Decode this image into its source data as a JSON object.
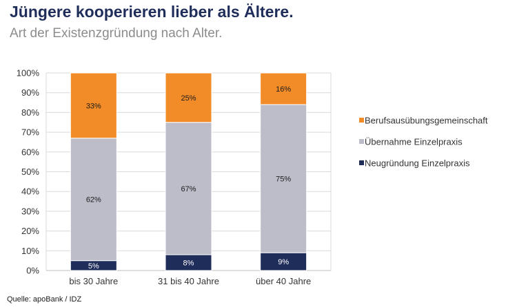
{
  "header": {
    "title": "Jüngere kooperieren lieber als Ältere.",
    "subtitle": "Art der Existenzgründung nach Alter."
  },
  "footer": {
    "source": "Quelle: apoBank / IDZ"
  },
  "chart_data": {
    "type": "bar",
    "stacked": true,
    "categories": [
      "bis 30 Jahre",
      "31 bis 40 Jahre",
      "über 40 Jahre"
    ],
    "series": [
      {
        "name": "Neugründung Einzelpraxis",
        "values": [
          5,
          8,
          9
        ],
        "labels": [
          "5%",
          "8%",
          "9%"
        ],
        "color": "#1f2d5a",
        "label_color": "#ffffff"
      },
      {
        "name": "Übernahme Einzelpraxis",
        "values": [
          62,
          67,
          75
        ],
        "labels": [
          "62%",
          "67%",
          "75%"
        ],
        "color": "#bcbdc9",
        "label_color": "#1a1a1a"
      },
      {
        "name": "Berufsausübungsgemeinschaft",
        "values": [
          33,
          25,
          16
        ],
        "labels": [
          "33%",
          "25%",
          "16%"
        ],
        "color": "#f28c28",
        "label_color": "#1a1a1a"
      }
    ],
    "legend_order": [
      "Berufsausübungsgemeinschaft",
      "Übernahme Einzelpraxis",
      "Neugründung Einzelpraxis"
    ],
    "ylim": [
      0,
      100
    ],
    "yticks": [
      "0%",
      "10%",
      "20%",
      "30%",
      "40%",
      "50%",
      "60%",
      "70%",
      "80%",
      "90%",
      "100%"
    ],
    "grid": true,
    "legend_position": "right"
  }
}
